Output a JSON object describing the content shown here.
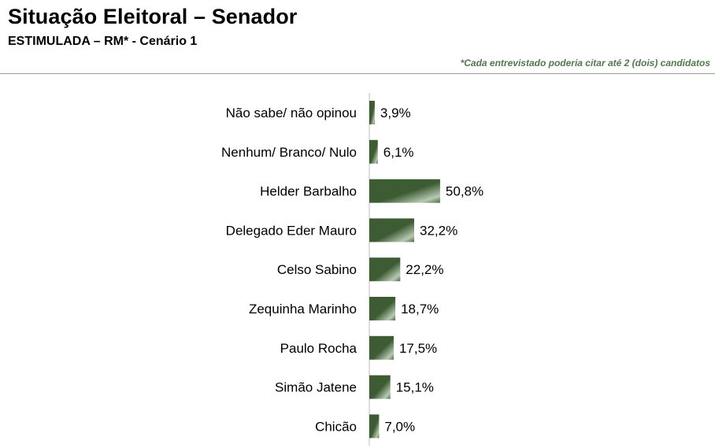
{
  "header": {
    "title": "Situação Eleitoral – Senador",
    "subtitle": "ESTIMULADA – RM* - Cenário 1",
    "note": "*Cada entrevistado poderia citar até 2 (dois) candidatos"
  },
  "colors": {
    "bar_dark": "#3d5c34",
    "bar_light": "#b9c9b3",
    "note": "#4f7a4a",
    "axis": "#bdbdbd"
  },
  "chart_data": {
    "type": "bar",
    "orientation": "horizontal",
    "title": "Situação Eleitoral – Senador",
    "subtitle": "ESTIMULADA – RM* - Cenário 1",
    "categories": [
      "Não sabe/ não opinou",
      "Nenhum/ Branco/ Nulo",
      "Helder Barbalho",
      "Delegado Eder Mauro",
      "Celso Sabino",
      "Zequinha Marinho",
      "Paulo Rocha",
      "Simão Jatene",
      "Chicão"
    ],
    "values": [
      3.9,
      6.1,
      50.8,
      32.2,
      22.2,
      18.7,
      17.5,
      15.1,
      7.0
    ],
    "value_labels": [
      "3,9%",
      "6,1%",
      "50,8%",
      "32,2%",
      "22,2%",
      "18,7%",
      "17,5%",
      "15,1%",
      "7,0%"
    ],
    "unit": "%",
    "xlim": [
      0,
      100
    ],
    "grid": false,
    "legend": "none"
  }
}
